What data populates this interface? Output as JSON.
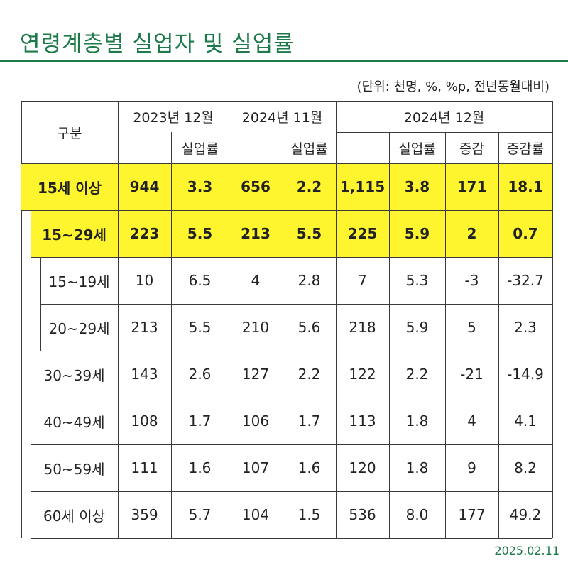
{
  "title": "연령계층별 실업자 및 실업률",
  "unit_note": "(단위: 천명, %, %p, 전년동월대비)",
  "date": "2025.02.11",
  "colors": {
    "accent": "#1e7a4a",
    "highlight": "#fff52e"
  },
  "header": {
    "category": "구분",
    "period1": "2023년 12월",
    "period2": "2024년 11월",
    "period3": "2024년 12월",
    "rate1": "실업률",
    "rate2": "실업률",
    "rate3": "실업률",
    "change": "증감",
    "change_rate": "증감률"
  },
  "rows": [
    {
      "label": "15세 이상",
      "cells": [
        "944",
        "3.3",
        "656",
        "2.2",
        "1,115",
        "3.8",
        "171",
        "18.1"
      ]
    },
    {
      "label": "15~29세",
      "cells": [
        "223",
        "5.5",
        "213",
        "5.5",
        "225",
        "5.9",
        "2",
        "0.7"
      ]
    },
    {
      "label": "15~19세",
      "cells": [
        "10",
        "6.5",
        "4",
        "2.8",
        "7",
        "5.3",
        "-3",
        "-32.7"
      ]
    },
    {
      "label": "20~29세",
      "cells": [
        "213",
        "5.5",
        "210",
        "5.6",
        "218",
        "5.9",
        "5",
        "2.3"
      ]
    },
    {
      "label": "30~39세",
      "cells": [
        "143",
        "2.6",
        "127",
        "2.2",
        "122",
        "2.2",
        "-21",
        "-14.9"
      ]
    },
    {
      "label": "40~49세",
      "cells": [
        "108",
        "1.7",
        "106",
        "1.7",
        "113",
        "1.8",
        "4",
        "4.1"
      ]
    },
    {
      "label": "50~59세",
      "cells": [
        "111",
        "1.6",
        "107",
        "1.6",
        "120",
        "1.8",
        "9",
        "8.2"
      ]
    },
    {
      "label": "60세 이상",
      "cells": [
        "359",
        "5.7",
        "104",
        "1.5",
        "536",
        "8.0",
        "177",
        "49.2"
      ]
    }
  ]
}
